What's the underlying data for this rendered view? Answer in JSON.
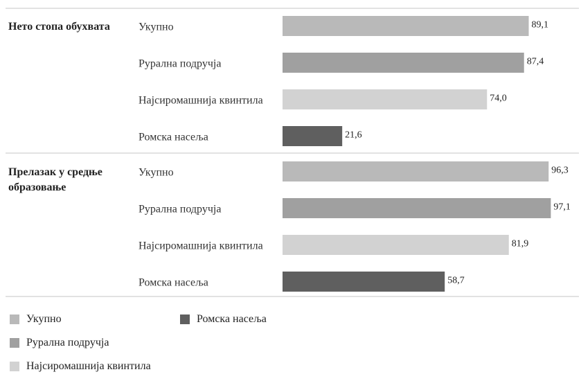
{
  "colors": {
    "Укупно": "#b9b9b9",
    "Рурална подручја": "#a0a0a0",
    "Најсиромашнија квинтила": "#d2d2d2",
    "Ромска насеља": "#5f5f5f",
    "separator": "#d8d8d8"
  },
  "chart_data": {
    "type": "bar",
    "orientation": "horizontal",
    "xlim": [
      0,
      100
    ],
    "grid": false,
    "value_labels": true,
    "legend_position": "bottom-left",
    "groups": [
      {
        "label": "Нето стопа обухвата",
        "bars": [
          {
            "category": "Укупно",
            "value": 89.1,
            "label": "89,1"
          },
          {
            "category": "Рурална подручја",
            "value": 87.4,
            "label": "87,4"
          },
          {
            "category": "Најсиромашнија квинтила",
            "value": 74.0,
            "label": "74,0"
          },
          {
            "category": "Ромска насеља",
            "value": 21.6,
            "label": "21,6"
          }
        ]
      },
      {
        "label": "Прелазак у средње образовање",
        "bars": [
          {
            "category": "Укупно",
            "value": 96.3,
            "label": "96,3"
          },
          {
            "category": "Рурална подручја",
            "value": 97.1,
            "label": "97,1"
          },
          {
            "category": "Најсиромашнија квинтила",
            "value": 81.9,
            "label": "81,9"
          },
          {
            "category": "Ромска насеља",
            "value": 58.7,
            "label": "58,7"
          }
        ]
      }
    ],
    "legend": [
      "Укупно",
      "Рурална подручја",
      "Најсиромашнија квинтила",
      "Ромска насеља"
    ]
  }
}
